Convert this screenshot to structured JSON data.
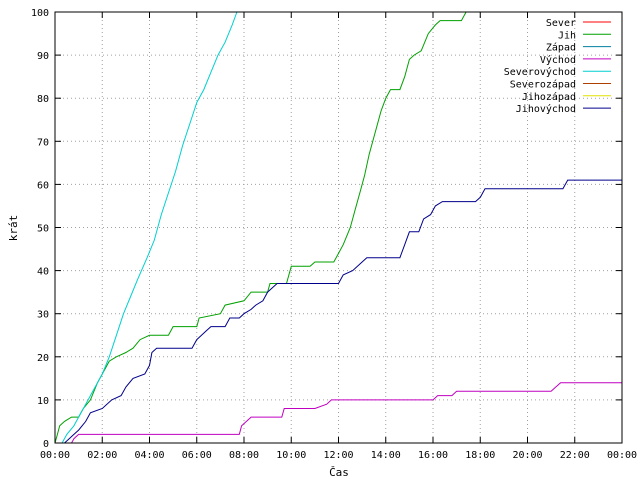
{
  "chart_data": {
    "type": "line",
    "title": "",
    "xlabel": "Čas",
    "ylabel": "krát",
    "xlim": [
      0,
      24
    ],
    "ylim": [
      0,
      100
    ],
    "x_ticks": [
      0,
      2,
      4,
      6,
      8,
      10,
      12,
      14,
      16,
      18,
      20,
      22,
      24
    ],
    "x_tick_labels": [
      "00:00",
      "02:00",
      "04:00",
      "06:00",
      "08:00",
      "10:00",
      "12:00",
      "14:00",
      "16:00",
      "18:00",
      "20:00",
      "22:00",
      "00:00"
    ],
    "y_ticks": [
      0,
      10,
      20,
      30,
      40,
      50,
      60,
      70,
      80,
      90,
      100
    ],
    "y_tick_labels": [
      "0",
      "10",
      "20",
      "30",
      "40",
      "50",
      "60",
      "70",
      "80",
      "90",
      "100"
    ],
    "grid": true,
    "legend_position": "top-right",
    "series": [
      {
        "name": "Sever",
        "color": "#ff0000",
        "points": []
      },
      {
        "name": "Jih",
        "color": "#00a000",
        "points": [
          [
            0,
            0
          ],
          [
            0.1,
            2
          ],
          [
            0.2,
            4
          ],
          [
            0.4,
            5
          ],
          [
            0.7,
            6
          ],
          [
            1.0,
            6
          ],
          [
            1.2,
            8
          ],
          [
            1.5,
            10
          ],
          [
            1.8,
            14
          ],
          [
            2.0,
            16
          ],
          [
            2.3,
            19
          ],
          [
            2.6,
            20
          ],
          [
            3.0,
            21
          ],
          [
            3.3,
            22
          ],
          [
            3.6,
            24
          ],
          [
            4.0,
            25
          ],
          [
            4.8,
            25
          ],
          [
            4.9,
            26
          ],
          [
            5.0,
            27
          ],
          [
            6.0,
            27
          ],
          [
            6.1,
            29
          ],
          [
            7.0,
            30
          ],
          [
            7.2,
            32
          ],
          [
            8.0,
            33
          ],
          [
            8.3,
            35
          ],
          [
            9.0,
            35
          ],
          [
            9.1,
            37
          ],
          [
            9.8,
            37
          ],
          [
            9.9,
            39
          ],
          [
            10.0,
            41
          ],
          [
            10.8,
            41
          ],
          [
            11.0,
            42
          ],
          [
            11.8,
            42
          ],
          [
            12.0,
            44
          ],
          [
            12.2,
            46
          ],
          [
            12.5,
            50
          ],
          [
            12.7,
            54
          ],
          [
            12.9,
            58
          ],
          [
            13.1,
            62
          ],
          [
            13.3,
            67
          ],
          [
            13.6,
            73
          ],
          [
            13.8,
            77
          ],
          [
            14.0,
            80
          ],
          [
            14.2,
            82
          ],
          [
            14.6,
            82
          ],
          [
            14.8,
            85
          ],
          [
            15.0,
            89
          ],
          [
            15.2,
            90
          ],
          [
            15.5,
            91
          ],
          [
            15.8,
            95
          ],
          [
            16.1,
            97
          ],
          [
            16.3,
            98
          ],
          [
            17.2,
            98
          ],
          [
            17.4,
            100
          ]
        ]
      },
      {
        "name": "Západ",
        "color": "#0080a0",
        "points": []
      },
      {
        "name": "Východ",
        "color": "#c000c0",
        "points": [
          [
            0,
            0
          ],
          [
            0.7,
            0
          ],
          [
            0.8,
            1
          ],
          [
            1.0,
            2
          ],
          [
            2.0,
            2
          ],
          [
            7.8,
            2
          ],
          [
            7.9,
            4
          ],
          [
            8.3,
            6
          ],
          [
            9.6,
            6
          ],
          [
            9.7,
            8
          ],
          [
            11.0,
            8
          ],
          [
            11.5,
            9
          ],
          [
            11.7,
            10
          ],
          [
            16.0,
            10
          ],
          [
            16.2,
            11
          ],
          [
            16.8,
            11
          ],
          [
            17.0,
            12
          ],
          [
            21.0,
            12
          ],
          [
            21.2,
            13
          ],
          [
            21.4,
            14
          ],
          [
            24,
            14
          ]
        ]
      },
      {
        "name": "Severovýchod",
        "color": "#00d0d0",
        "points": [
          [
            0,
            0
          ],
          [
            0.3,
            0
          ],
          [
            0.5,
            2
          ],
          [
            0.8,
            4
          ],
          [
            1.0,
            6
          ],
          [
            1.3,
            9
          ],
          [
            1.6,
            12
          ],
          [
            2.0,
            16
          ],
          [
            2.3,
            20
          ],
          [
            2.6,
            25
          ],
          [
            2.9,
            30
          ],
          [
            3.2,
            34
          ],
          [
            3.5,
            38
          ],
          [
            3.9,
            43
          ],
          [
            4.2,
            47
          ],
          [
            4.5,
            53
          ],
          [
            4.8,
            58
          ],
          [
            5.1,
            63
          ],
          [
            5.4,
            69
          ],
          [
            5.7,
            74
          ],
          [
            6.0,
            79
          ],
          [
            6.3,
            82
          ],
          [
            6.6,
            86
          ],
          [
            6.9,
            90
          ],
          [
            7.2,
            93
          ],
          [
            7.5,
            97
          ],
          [
            7.7,
            100
          ]
        ]
      },
      {
        "name": "Severozápad",
        "color": "#b04000",
        "points": []
      },
      {
        "name": "Jihozápad",
        "color": "#e0e000",
        "points": []
      },
      {
        "name": "Jihovýchod",
        "color": "#00008b",
        "points": [
          [
            0,
            0
          ],
          [
            0.4,
            0
          ],
          [
            0.6,
            1
          ],
          [
            0.8,
            2
          ],
          [
            1.0,
            3
          ],
          [
            1.3,
            5
          ],
          [
            1.5,
            7
          ],
          [
            2.0,
            8
          ],
          [
            2.4,
            10
          ],
          [
            2.8,
            11
          ],
          [
            3.0,
            13
          ],
          [
            3.3,
            15
          ],
          [
            3.8,
            16
          ],
          [
            4.0,
            18
          ],
          [
            4.1,
            21
          ],
          [
            4.3,
            22
          ],
          [
            5.8,
            22
          ],
          [
            6.0,
            24
          ],
          [
            6.2,
            25
          ],
          [
            6.4,
            26
          ],
          [
            6.6,
            27
          ],
          [
            7.2,
            27
          ],
          [
            7.4,
            29
          ],
          [
            7.8,
            29
          ],
          [
            8.0,
            30
          ],
          [
            8.3,
            31
          ],
          [
            8.5,
            32
          ],
          [
            8.8,
            33
          ],
          [
            9.0,
            35
          ],
          [
            9.2,
            36
          ],
          [
            9.4,
            37
          ],
          [
            12.0,
            37
          ],
          [
            12.2,
            39
          ],
          [
            12.6,
            40
          ],
          [
            13.0,
            42
          ],
          [
            13.2,
            43
          ],
          [
            14.6,
            43
          ],
          [
            14.8,
            46
          ],
          [
            15.0,
            49
          ],
          [
            15.4,
            49
          ],
          [
            15.6,
            52
          ],
          [
            15.9,
            53
          ],
          [
            16.1,
            55
          ],
          [
            16.4,
            56
          ],
          [
            17.8,
            56
          ],
          [
            18.0,
            57
          ],
          [
            18.2,
            59
          ],
          [
            21.5,
            59
          ],
          [
            21.7,
            61
          ],
          [
            24,
            61
          ]
        ]
      }
    ]
  }
}
